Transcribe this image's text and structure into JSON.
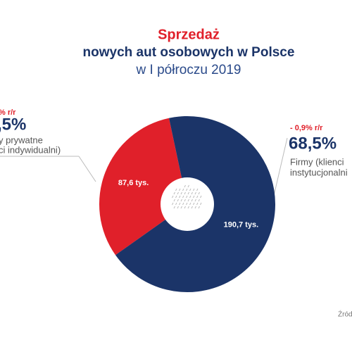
{
  "chart_data": {
    "type": "pie",
    "title": "Sprzedaż",
    "subtitle": "nowych aut osobowych w Polsce",
    "subtitle2": "w I półroczu 2019",
    "values": [
      87.6,
      190.7
    ],
    "value_labels": [
      "87,6 tys.",
      "190,7 tys."
    ],
    "colors": [
      "#e0202a",
      "#1b3468"
    ],
    "annotations": [
      {
        "change": "% r/r",
        "share": ",5%",
        "lines": [
          "y prywatne",
          "ci indywidualni)"
        ]
      },
      {
        "change": "- 0,9% r/r",
        "share": "68,5%",
        "lines": [
          "Firmy (klienci",
          "instytucjonalni"
        ]
      }
    ],
    "source": "Źród"
  }
}
